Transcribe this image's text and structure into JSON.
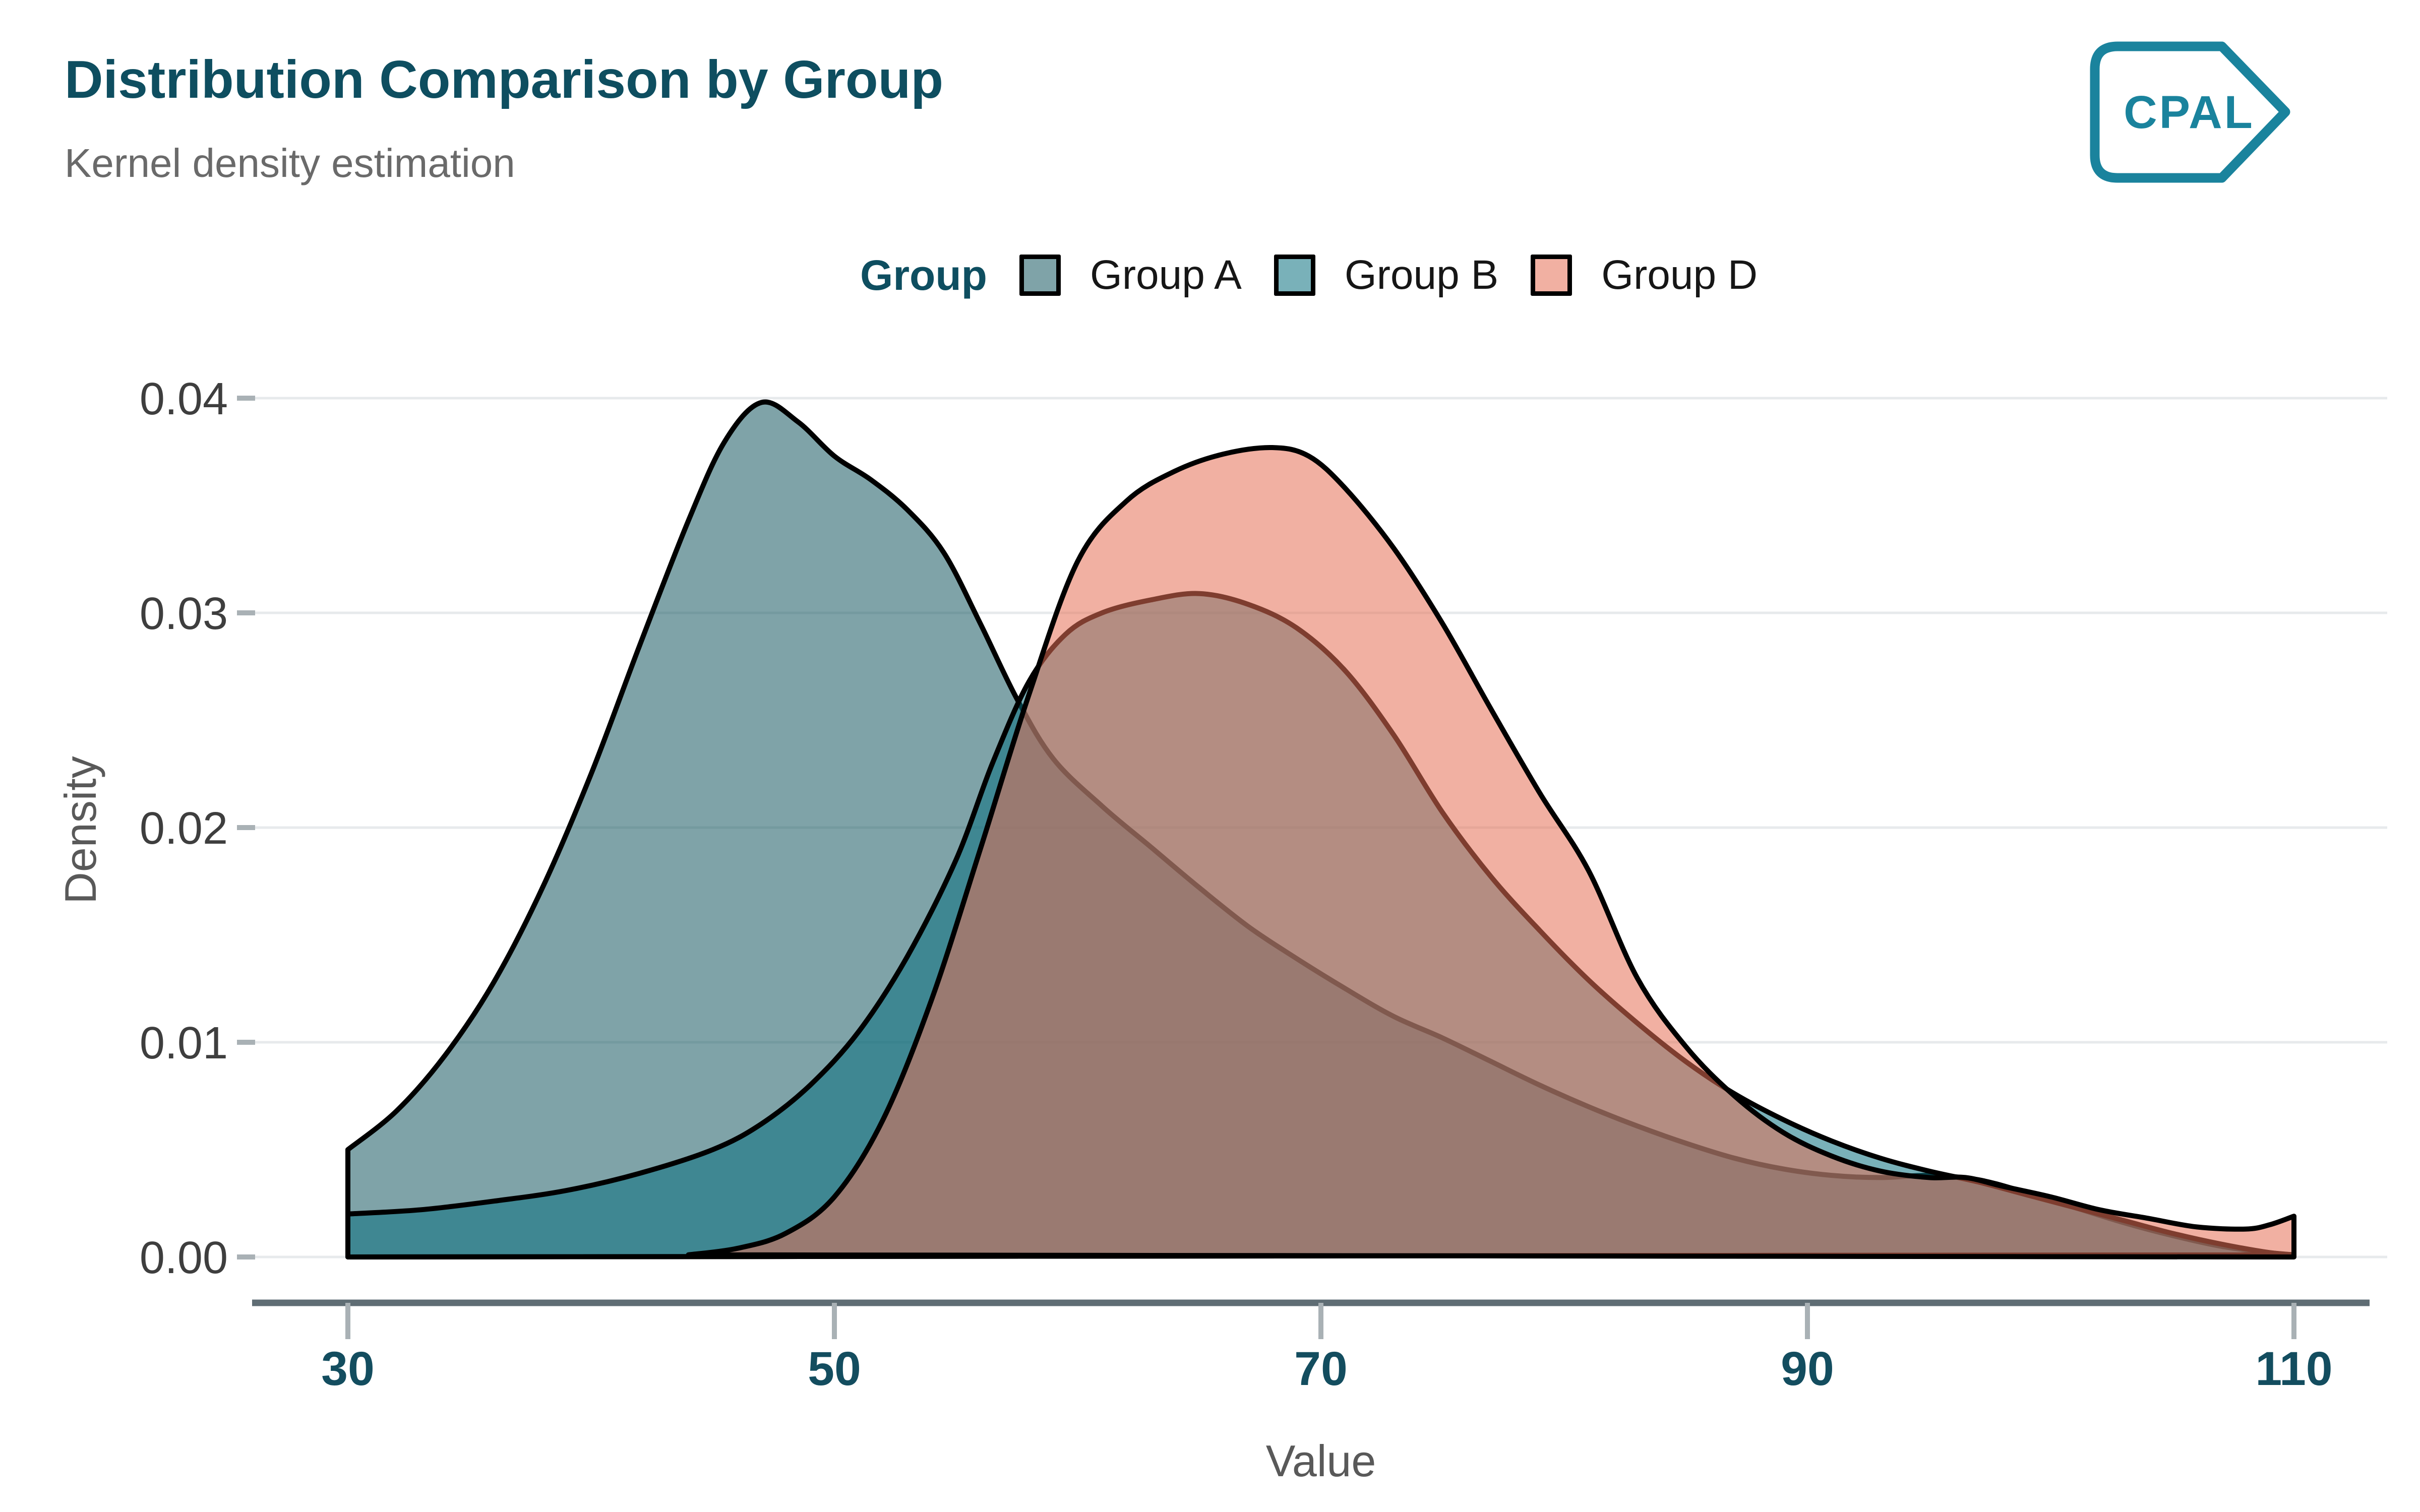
{
  "header": {
    "title": "Distribution Comparison by Group",
    "subtitle": "Kernel density estimation"
  },
  "brand": {
    "logo_text": "CPAL",
    "logo_color": "#1a839d"
  },
  "legend": {
    "title": "Group",
    "items": [
      {
        "label": "Group A",
        "swatch": "#7fa3a8"
      },
      {
        "label": "Group B",
        "swatch": "#79b1b9"
      },
      {
        "label": "Group D",
        "swatch": "#f1b0a2"
      }
    ]
  },
  "axes": {
    "x": {
      "label": "Value",
      "range": [
        30,
        110
      ],
      "ticks": [
        {
          "label": "30",
          "v": 30
        },
        {
          "label": "50",
          "v": 50
        },
        {
          "label": "70",
          "v": 70
        },
        {
          "label": "90",
          "v": 90
        },
        {
          "label": "110",
          "v": 110
        }
      ]
    },
    "y": {
      "label": "Density",
      "range": [
        0,
        0.04
      ],
      "ticks": [
        {
          "label": "0.00",
          "d": 0
        },
        {
          "label": "0.01",
          "d": 0.01
        },
        {
          "label": "0.02",
          "d": 0.02
        },
        {
          "label": "0.03",
          "d": 0.03
        },
        {
          "label": "0.04",
          "d": 0.04
        }
      ]
    }
  },
  "palette": {
    "title": "#0e4e60",
    "subtitle": "#6a6a6a",
    "x_tick_label": "#134d5f",
    "y_tick_label": "#3e3e3e",
    "axis_title": "#595959",
    "axis_line": "#5f6d74",
    "tick_mark": "#a9b1b5",
    "gridline": "#e7eaec",
    "curve_stroke": "#000000",
    "legend_label": "#161616"
  },
  "chart_data": {
    "type": "area",
    "subtype": "kernel-density",
    "title": "Distribution Comparison by Group",
    "xlabel": "Value",
    "ylabel": "Density",
    "xlim": [
      30,
      110
    ],
    "ylim": [
      0,
      0.04
    ],
    "grid": "horizontal-major",
    "legend_position": "top-center",
    "fill_opacity": 0.55,
    "stroke_width": 10,
    "series": [
      {
        "name": "Group A",
        "fill": "#165861",
        "edge_left": true,
        "edge_right": false,
        "points": [
          [
            30,
            0.005
          ],
          [
            32,
            0.0068
          ],
          [
            34,
            0.0094
          ],
          [
            36,
            0.0128
          ],
          [
            38,
            0.0172
          ],
          [
            40,
            0.0225
          ],
          [
            42,
            0.0285
          ],
          [
            44,
            0.0343
          ],
          [
            45.5,
            0.038
          ],
          [
            47,
            0.0398
          ],
          [
            48.5,
            0.0389
          ],
          [
            50,
            0.0373
          ],
          [
            51.5,
            0.0362
          ],
          [
            53,
            0.0348
          ],
          [
            54.5,
            0.0328
          ],
          [
            56,
            0.0295
          ],
          [
            57.5,
            0.026
          ],
          [
            59,
            0.0232
          ],
          [
            61,
            0.021
          ],
          [
            63,
            0.0191
          ],
          [
            65,
            0.0172
          ],
          [
            67,
            0.0154
          ],
          [
            69,
            0.0139
          ],
          [
            71,
            0.0125
          ],
          [
            73,
            0.0112
          ],
          [
            75,
            0.0102
          ],
          [
            77,
            0.0091
          ],
          [
            79,
            0.008
          ],
          [
            81,
            0.007
          ],
          [
            83,
            0.0061
          ],
          [
            85,
            0.0053
          ],
          [
            87,
            0.0046
          ],
          [
            89,
            0.0041
          ],
          [
            91,
            0.0038
          ],
          [
            93,
            0.0037
          ],
          [
            95,
            0.0038
          ],
          [
            97,
            0.0036
          ],
          [
            99,
            0.003
          ],
          [
            101,
            0.0023
          ],
          [
            103,
            0.0016
          ],
          [
            105,
            0.001
          ],
          [
            107,
            0.0005
          ],
          [
            109,
            0.0002
          ],
          [
            110,
            0.0001
          ]
        ]
      },
      {
        "name": "Group B",
        "fill": "#0b7180",
        "edge_left": true,
        "edge_right": false,
        "points": [
          [
            30,
            0.002
          ],
          [
            33,
            0.0022
          ],
          [
            36,
            0.0026
          ],
          [
            39,
            0.0031
          ],
          [
            42,
            0.0039
          ],
          [
            45,
            0.005
          ],
          [
            47,
            0.0062
          ],
          [
            49,
            0.008
          ],
          [
            51,
            0.0105
          ],
          [
            53,
            0.014
          ],
          [
            55,
            0.0185
          ],
          [
            56.5,
            0.023
          ],
          [
            58,
            0.0268
          ],
          [
            59.5,
            0.029
          ],
          [
            61,
            0.03
          ],
          [
            63,
            0.0306
          ],
          [
            65,
            0.0309
          ],
          [
            67,
            0.0304
          ],
          [
            69,
            0.0293
          ],
          [
            71,
            0.0273
          ],
          [
            73,
            0.0243
          ],
          [
            75,
            0.0207
          ],
          [
            77,
            0.0177
          ],
          [
            79,
            0.0152
          ],
          [
            81,
            0.0129
          ],
          [
            83,
            0.0109
          ],
          [
            85,
            0.0091
          ],
          [
            87,
            0.0076
          ],
          [
            89,
            0.0064
          ],
          [
            91,
            0.0054
          ],
          [
            93,
            0.0046
          ],
          [
            95,
            0.004
          ],
          [
            97,
            0.0035
          ],
          [
            99,
            0.0029
          ],
          [
            101,
            0.0023
          ],
          [
            103,
            0.0017
          ],
          [
            105,
            0.0011
          ],
          [
            107,
            0.0006
          ],
          [
            109,
            0.0002
          ],
          [
            110,
            0.0001
          ]
        ]
      },
      {
        "name": "Group D",
        "fill": "#e66f55",
        "edge_left": false,
        "edge_right": true,
        "points": [
          [
            44,
            0.0001
          ],
          [
            46,
            0.0004
          ],
          [
            48,
            0.0011
          ],
          [
            50,
            0.0028
          ],
          [
            52,
            0.0064
          ],
          [
            54,
            0.012
          ],
          [
            56,
            0.019
          ],
          [
            58,
            0.0262
          ],
          [
            60,
            0.0324
          ],
          [
            62,
            0.0352
          ],
          [
            64,
            0.0366
          ],
          [
            66,
            0.0374
          ],
          [
            68,
            0.0377
          ],
          [
            69.5,
            0.0373
          ],
          [
            71,
            0.0358
          ],
          [
            73,
            0.033
          ],
          [
            75,
            0.0295
          ],
          [
            77,
            0.0255
          ],
          [
            79,
            0.0216
          ],
          [
            81,
            0.018
          ],
          [
            83,
            0.013
          ],
          [
            85,
            0.0098
          ],
          [
            87,
            0.0075
          ],
          [
            89,
            0.0058
          ],
          [
            91,
            0.0047
          ],
          [
            93,
            0.004
          ],
          [
            95,
            0.0037
          ],
          [
            96.5,
            0.0037
          ],
          [
            98,
            0.0033
          ],
          [
            100,
            0.0028
          ],
          [
            102,
            0.0022
          ],
          [
            104,
            0.0018
          ],
          [
            106,
            0.0014
          ],
          [
            108,
            0.0013
          ],
          [
            109,
            0.0015
          ],
          [
            110,
            0.0019
          ]
        ]
      }
    ]
  }
}
